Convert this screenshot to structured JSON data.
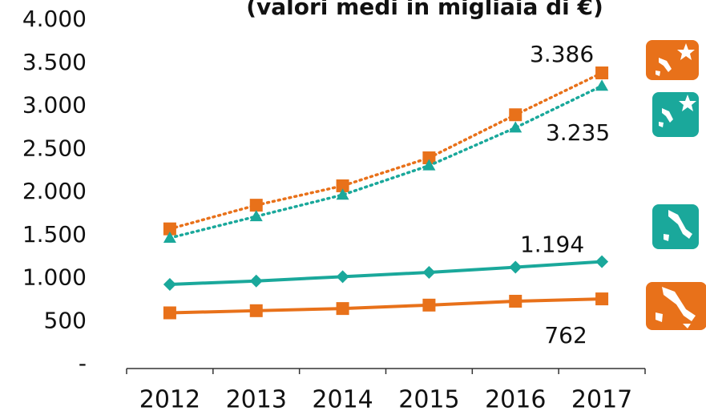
{
  "chart_data": {
    "type": "line",
    "title": "(valori medi in migliaia di €)",
    "categories": [
      "2012",
      "2013",
      "2014",
      "2015",
      "2016",
      "2017"
    ],
    "ylim": [
      0,
      4000
    ],
    "yticks": [
      {
        "value": 0,
        "label": "-"
      },
      500,
      {
        "value": 1000,
        "label": "1.000"
      },
      {
        "value": 1500,
        "label": "1.500"
      },
      {
        "value": 2000,
        "label": "2.000"
      },
      {
        "value": 2500,
        "label": "2.500"
      },
      {
        "value": 3000,
        "label": "3.000"
      },
      {
        "value": 3500,
        "label": "3.500"
      },
      {
        "value": 4000,
        "label": "4.000"
      }
    ],
    "series": [
      {
        "color": "#e8711a",
        "dash": "dotted",
        "marker": "square",
        "values": [
          1575,
          1850,
          2075,
          2400,
          2900,
          3386
        ],
        "value_labels": [
          null,
          null,
          null,
          null,
          null,
          "3.386"
        ]
      },
      {
        "color": "#1aa89b",
        "dash": "dotted",
        "marker": "triangle",
        "values": [
          1470,
          1720,
          1970,
          2310,
          2750,
          3235
        ],
        "value_labels": [
          null,
          null,
          null,
          null,
          null,
          "3.235"
        ]
      },
      {
        "color": "#1aa89b",
        "dash": "solid",
        "marker": "diamond",
        "values": [
          930,
          970,
          1020,
          1070,
          1130,
          1194
        ],
        "value_labels": [
          null,
          null,
          null,
          null,
          null,
          "1.194"
        ]
      },
      {
        "color": "#e8711a",
        "dash": "solid",
        "marker": "square",
        "values": [
          600,
          625,
          650,
          690,
          735,
          762
        ],
        "value_labels": [
          null,
          null,
          null,
          null,
          null,
          "762"
        ]
      }
    ]
  }
}
